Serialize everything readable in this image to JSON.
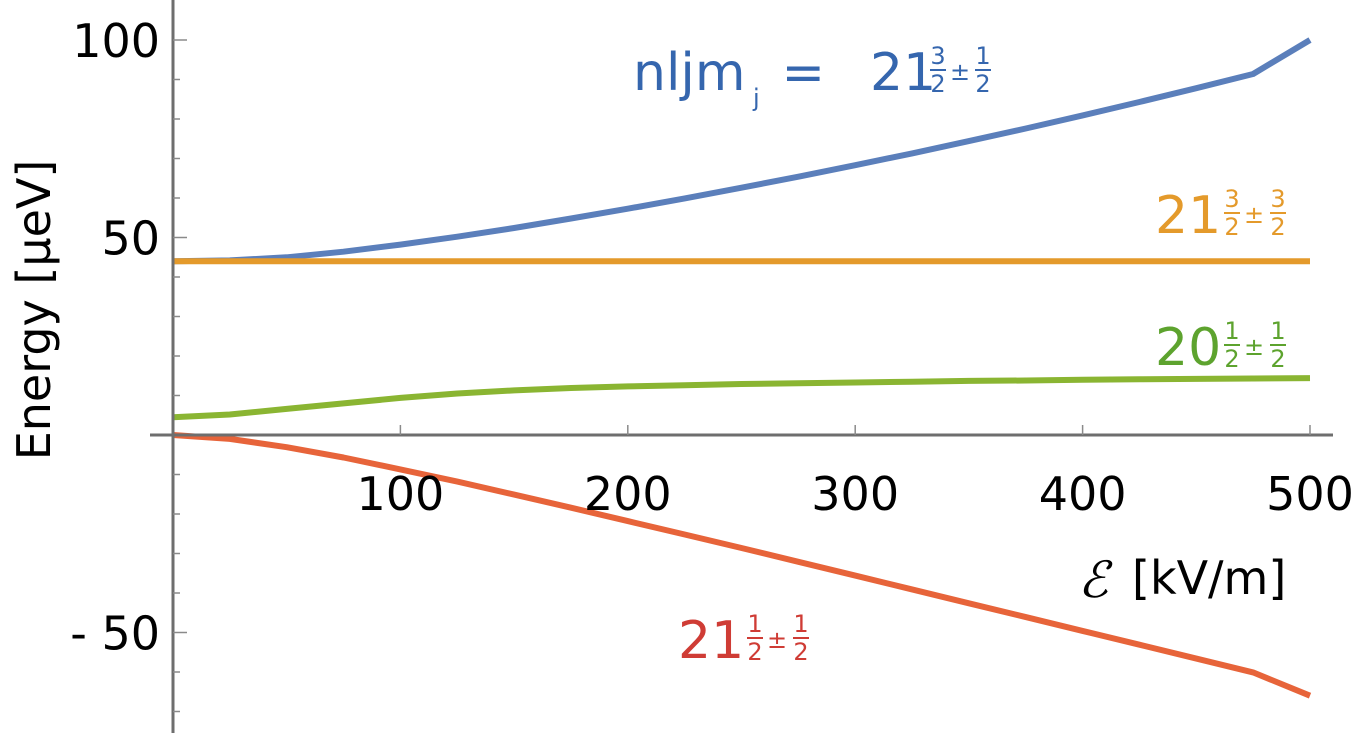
{
  "chart_data": {
    "type": "line",
    "xlabel": {
      "symbol": "ℰ",
      "unit": "[kV/m]"
    },
    "ylabel": "Energy [μeV]",
    "xlim": [
      0,
      500
    ],
    "ylim": [
      -75,
      105
    ],
    "x_ticks": [
      100,
      200,
      300,
      400,
      500
    ],
    "x_tick_labels": [
      "100",
      "200",
      "300",
      "400",
      "500"
    ],
    "y_ticks": [
      -50,
      50,
      100
    ],
    "y_tick_labels": [
      "- 50",
      "50",
      "100"
    ],
    "grid": false,
    "series": [
      {
        "label": {
          "prefix": "nljm",
          "subscript": "j",
          "eq": " = ",
          "main": "21",
          "frac1_num": "3",
          "frac1_den": "2",
          "pm": "±",
          "frac2_num": "1",
          "frac2_den": "2"
        },
        "color": "#5B7FBB",
        "label_color": "#3566AE",
        "x": [
          0,
          25,
          50,
          75,
          100,
          125,
          150,
          175,
          200,
          225,
          250,
          275,
          300,
          325,
          350,
          375,
          400,
          425,
          450,
          475,
          500
        ],
        "y": [
          44,
          44.2,
          45.0,
          46.4,
          48.2,
          50.2,
          52.4,
          54.8,
          57.3,
          59.9,
          62.6,
          65.4,
          68.3,
          71.3,
          74.4,
          77.6,
          80.9,
          84.3,
          87.8,
          91.4,
          100
        ]
      },
      {
        "label": {
          "main": "21",
          "frac1_num": "3",
          "frac1_den": "2",
          "pm": "±",
          "frac2_num": "3",
          "frac2_den": "2"
        },
        "color": "#E49A2B",
        "label_color": "#E49A2B",
        "x": [
          0,
          500
        ],
        "y": [
          44,
          44
        ]
      },
      {
        "label": {
          "main": "20",
          "frac1_num": "1",
          "frac1_den": "2",
          "pm": "±",
          "frac2_num": "1",
          "frac2_den": "2"
        },
        "color": "#8AB532",
        "label_color": "#5DA32E",
        "x": [
          0,
          25,
          50,
          75,
          100,
          125,
          150,
          175,
          200,
          225,
          250,
          275,
          300,
          325,
          350,
          375,
          400,
          425,
          450,
          475,
          500
        ],
        "y": [
          4.5,
          5.2,
          6.6,
          8.0,
          9.4,
          10.5,
          11.3,
          11.9,
          12.3,
          12.6,
          12.9,
          13.1,
          13.3,
          13.5,
          13.7,
          13.8,
          14.0,
          14.1,
          14.2,
          14.3,
          14.4
        ]
      },
      {
        "label": {
          "main": "21",
          "frac1_num": "1",
          "frac1_den": "2",
          "pm": "±",
          "frac2_num": "1",
          "frac2_den": "2"
        },
        "color": "#E7643A",
        "label_color": "#CF3C35",
        "x": [
          0,
          25,
          50,
          75,
          100,
          125,
          150,
          175,
          200,
          225,
          250,
          275,
          300,
          325,
          350,
          375,
          400,
          425,
          450,
          475,
          500
        ],
        "y": [
          0,
          -1.0,
          -3.1,
          -5.7,
          -8.7,
          -11.8,
          -15.1,
          -18.4,
          -21.8,
          -25.2,
          -28.6,
          -32.1,
          -35.6,
          -39.1,
          -42.6,
          -46.1,
          -49.6,
          -53.1,
          -56.6,
          -60.1,
          -66
        ]
      }
    ]
  }
}
